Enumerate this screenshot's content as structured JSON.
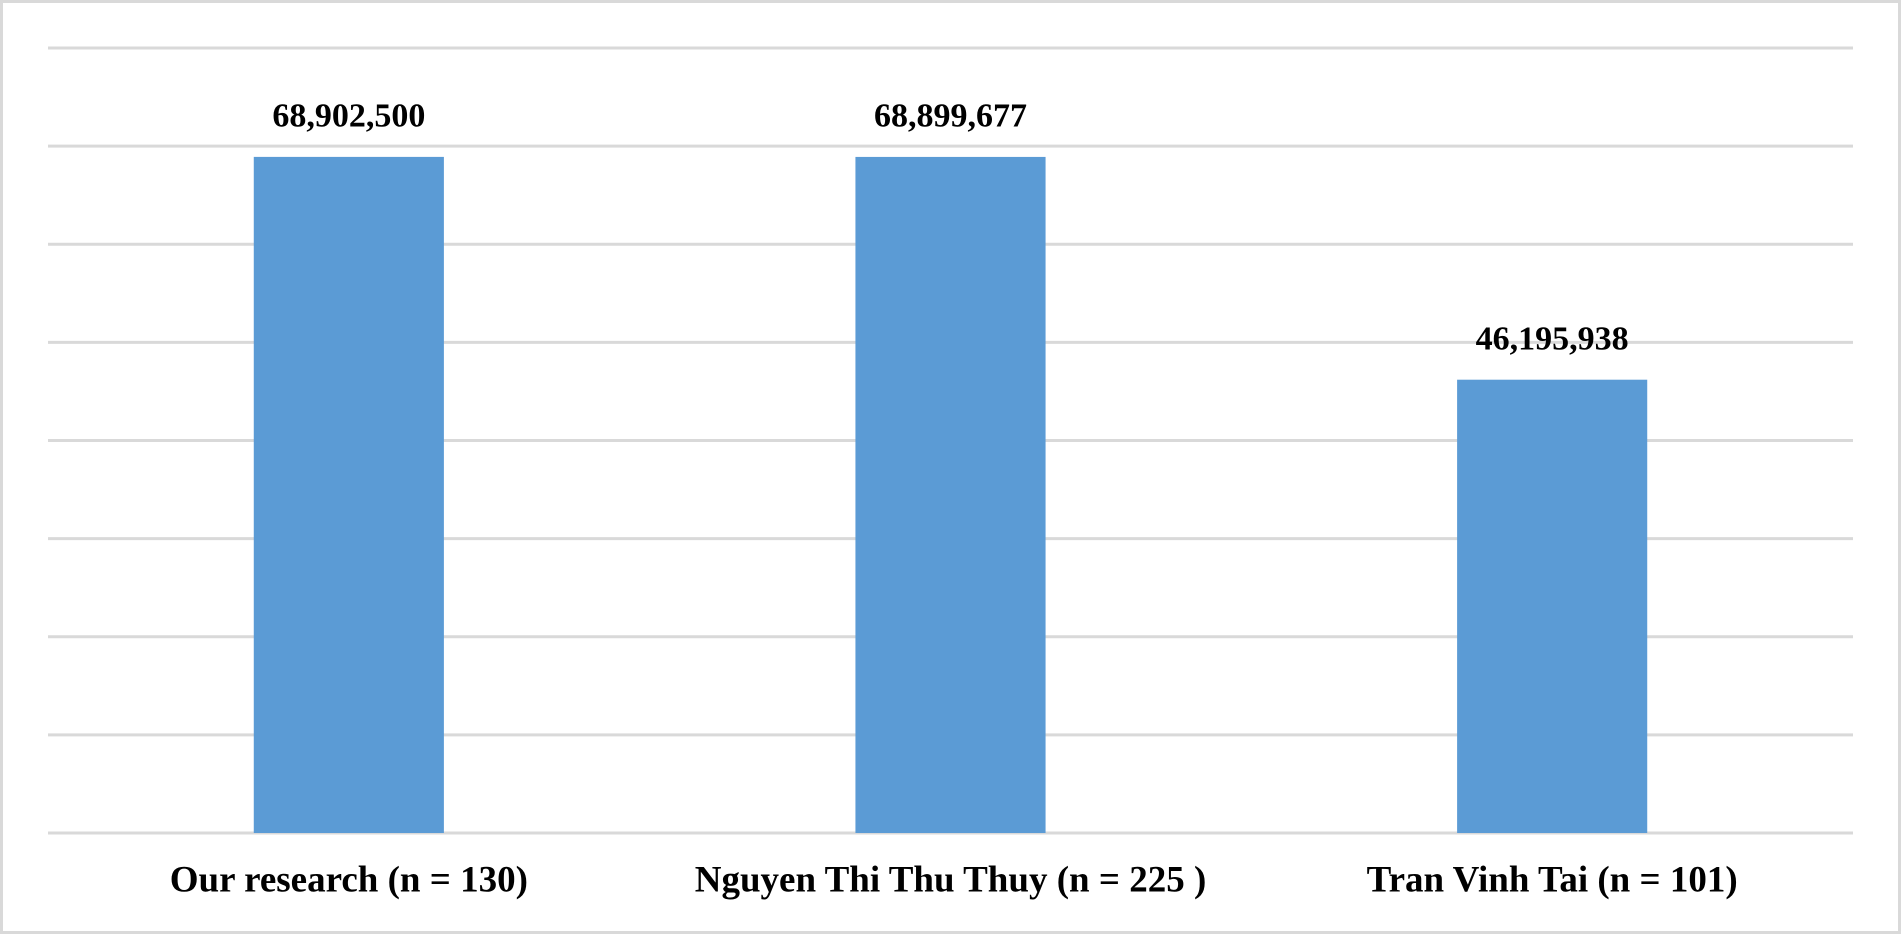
{
  "chart_data": {
    "type": "bar",
    "categories": [
      "Our research (n = 130)",
      "Nguyen Thi Thu Thuy (n = 225 )",
      "Tran Vinh Tai (n = 101)"
    ],
    "values": [
      68902500,
      68899677,
      46195938
    ],
    "value_labels": [
      "68,902,500",
      "68,899,677",
      "46,195,938"
    ],
    "color": "#5b9bd5",
    "ylim": [
      0,
      80000000
    ],
    "yticks": [
      0,
      10000000,
      20000000,
      30000000,
      40000000,
      50000000,
      60000000,
      70000000,
      80000000
    ],
    "show_tick_labels": false,
    "grid": true
  }
}
